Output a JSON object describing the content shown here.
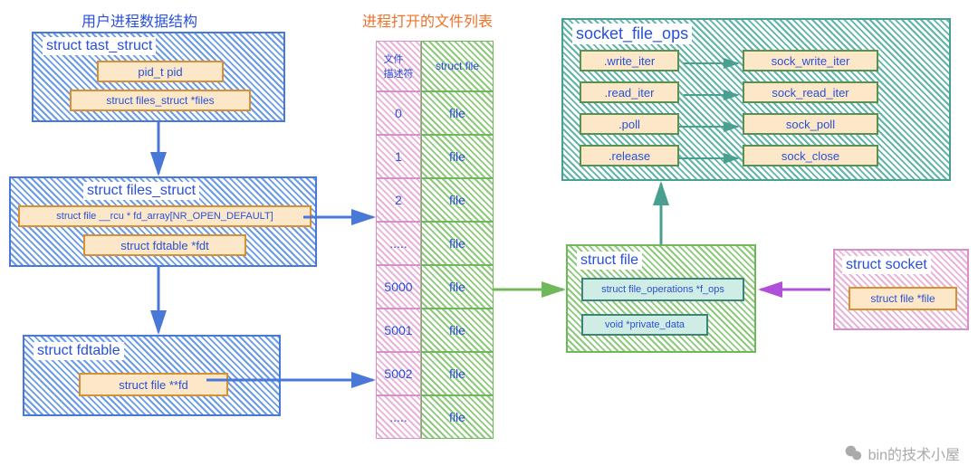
{
  "titles": {
    "user_process": "用户进程数据结构",
    "open_files": "进程打开的文件列表"
  },
  "task_struct": {
    "title": "struct  tast_struct",
    "pid": "pid_t  pid",
    "files": "struct  files_struct *files"
  },
  "files_struct": {
    "title": "struct files_struct",
    "fd_array": "struct file __rcu * fd_array[NR_OPEN_DEFAULT]",
    "fdt": "struct fdtable *fdt"
  },
  "fdtable": {
    "title": "struct fdtable",
    "fd": "struct file **fd"
  },
  "fd_table_cols": {
    "left_hdr": "文件\n描述符",
    "right_hdr": "struct file"
  },
  "fd_rows": [
    "0",
    "1",
    "2",
    ".....",
    "5000",
    "5001",
    "5002",
    "....."
  ],
  "file_cell": "file",
  "struct_file": {
    "title": "struct file",
    "f_ops": "struct file_operations *f_ops",
    "priv": "void *private_data"
  },
  "socket_ops": {
    "title": "socket_file_ops",
    "rows": [
      {
        "l": ".write_iter",
        "r": "sock_write_iter"
      },
      {
        "l": ".read_iter",
        "r": "sock_read_iter"
      },
      {
        "l": ".poll",
        "r": "sock_poll"
      },
      {
        "l": ".release",
        "r": "sock_close"
      }
    ]
  },
  "struct_socket": {
    "title": "struct socket",
    "file": "struct file *file"
  },
  "watermark": "bin的技术小屋",
  "colors": {
    "blue": "#4a78d8",
    "green": "#6fb85c",
    "teal": "#4aa090",
    "pink": "#d890c8",
    "orange": "#e89850",
    "arrow_blue": "#4a78d8",
    "arrow_green": "#6fb85c",
    "arrow_purple": "#b050d8"
  }
}
